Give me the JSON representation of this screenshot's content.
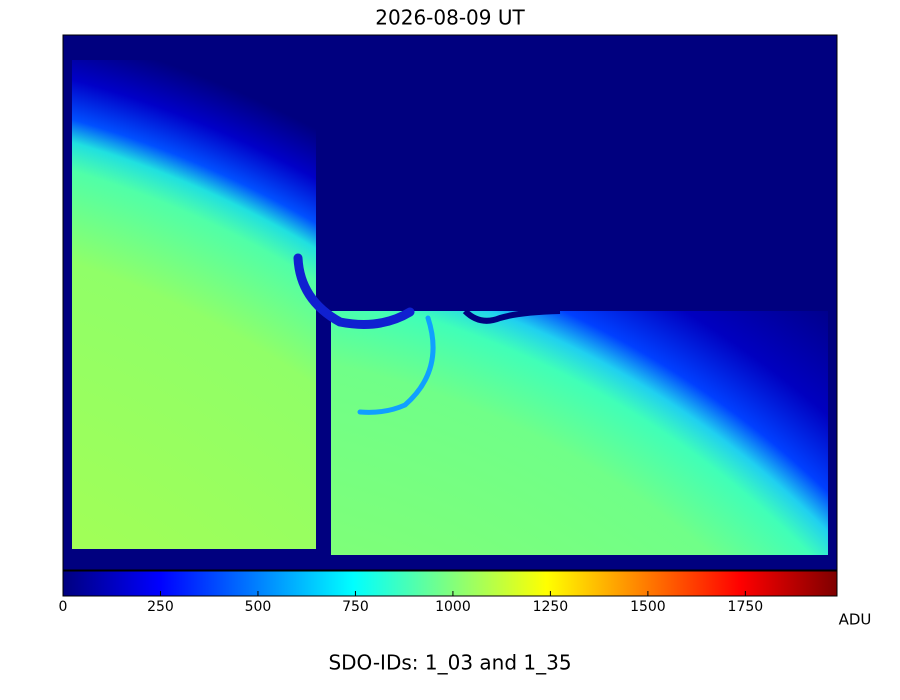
{
  "chart_data": {
    "type": "image",
    "title": "2026-08-09 UT",
    "colormap": "jet",
    "clim": [
      0,
      1985
    ],
    "cticks": [
      0,
      250,
      500,
      750,
      1000,
      1250,
      1500,
      1750
    ],
    "colorbar_label": "ADU",
    "footer": "SDO-IDs: 1_03 and 1_35"
  }
}
